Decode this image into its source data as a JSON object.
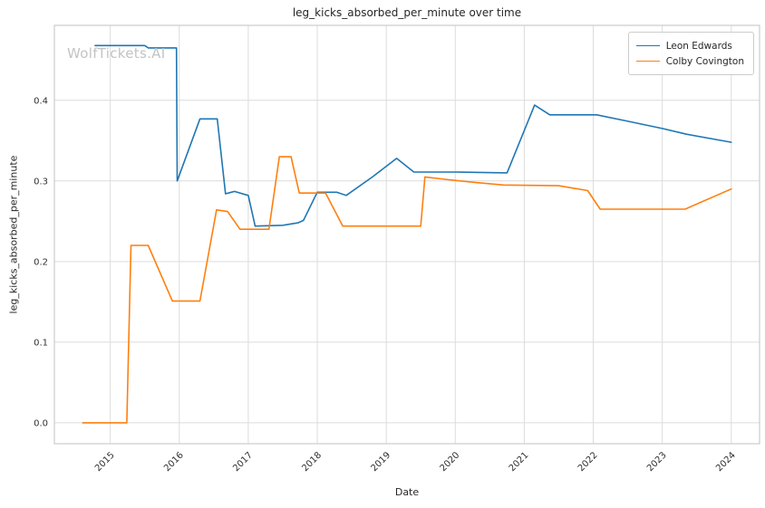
{
  "watermark": "WolfTickets.AI",
  "chart_data": {
    "type": "line",
    "title": "leg_kicks_absorbed_per_minute over time",
    "xlabel": "Date",
    "ylabel": "leg_kicks_absorbed_per_minute",
    "grid": true,
    "legend_position": "upper right",
    "xlim": [
      2014.19,
      2024.41
    ],
    "ylim": [
      -0.026,
      0.493
    ],
    "x_ticks": [
      2015,
      2016,
      2017,
      2018,
      2019,
      2020,
      2021,
      2022,
      2023,
      2024
    ],
    "y_ticks": [
      0.0,
      0.1,
      0.2,
      0.3,
      0.4
    ],
    "grid_color": "#dcdcdc",
    "frame_color": "#cccccc",
    "background_color": "#ffffff",
    "series": [
      {
        "name": "Leon Edwards",
        "color": "#1f77b4",
        "points": [
          [
            2014.78,
            0.468
          ],
          [
            2015.5,
            0.468
          ],
          [
            2015.55,
            0.465
          ],
          [
            2015.96,
            0.465
          ],
          [
            2015.97,
            0.3
          ],
          [
            2016.3,
            0.377
          ],
          [
            2016.55,
            0.377
          ],
          [
            2016.67,
            0.284
          ],
          [
            2016.8,
            0.287
          ],
          [
            2017.0,
            0.282
          ],
          [
            2017.1,
            0.244
          ],
          [
            2017.5,
            0.245
          ],
          [
            2017.72,
            0.248
          ],
          [
            2017.8,
            0.251
          ],
          [
            2018.0,
            0.286
          ],
          [
            2018.28,
            0.286
          ],
          [
            2018.42,
            0.282
          ],
          [
            2018.8,
            0.305
          ],
          [
            2019.15,
            0.328
          ],
          [
            2019.4,
            0.311
          ],
          [
            2020.0,
            0.311
          ],
          [
            2020.75,
            0.31
          ],
          [
            2021.15,
            0.394
          ],
          [
            2021.37,
            0.382
          ],
          [
            2022.05,
            0.382
          ],
          [
            2022.5,
            0.374
          ],
          [
            2023.0,
            0.365
          ],
          [
            2023.35,
            0.358
          ],
          [
            2024.0,
            0.348
          ]
        ]
      },
      {
        "name": "Colby Covington",
        "color": "#ff7f0e",
        "points": [
          [
            2014.6,
            0.0
          ],
          [
            2015.24,
            0.0
          ],
          [
            2015.3,
            0.22
          ],
          [
            2015.55,
            0.22
          ],
          [
            2015.9,
            0.151
          ],
          [
            2016.3,
            0.151
          ],
          [
            2016.54,
            0.264
          ],
          [
            2016.7,
            0.262
          ],
          [
            2016.88,
            0.24
          ],
          [
            2017.3,
            0.24
          ],
          [
            2017.45,
            0.33
          ],
          [
            2017.62,
            0.33
          ],
          [
            2017.74,
            0.285
          ],
          [
            2018.12,
            0.285
          ],
          [
            2018.37,
            0.244
          ],
          [
            2019.0,
            0.244
          ],
          [
            2019.5,
            0.244
          ],
          [
            2019.56,
            0.305
          ],
          [
            2019.85,
            0.302
          ],
          [
            2020.3,
            0.298
          ],
          [
            2020.7,
            0.295
          ],
          [
            2021.5,
            0.294
          ],
          [
            2021.92,
            0.288
          ],
          [
            2022.1,
            0.265
          ],
          [
            2022.6,
            0.265
          ],
          [
            2023.33,
            0.265
          ],
          [
            2024.0,
            0.29
          ]
        ]
      }
    ]
  }
}
